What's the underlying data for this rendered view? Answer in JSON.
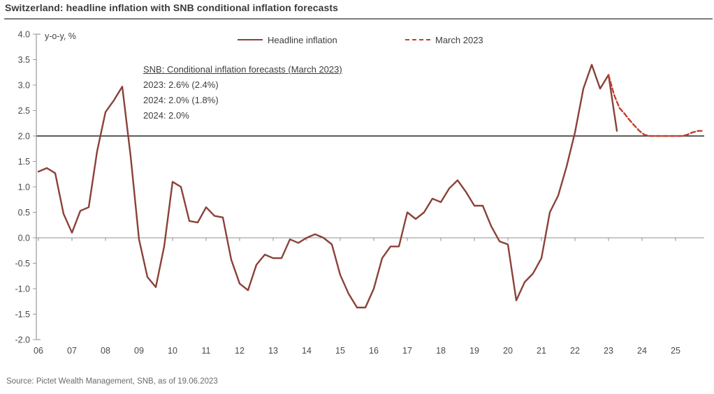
{
  "header": {
    "title": "Switzerland: headline inflation with SNB conditional inflation forecasts"
  },
  "chart": {
    "axis_unit_label": "y-o-y, %",
    "legend": [
      {
        "label": "Headline inflation",
        "style": "solid",
        "color": "#8a4138"
      },
      {
        "label": "March 2023",
        "style": "dashed",
        "color": "#c63c30"
      }
    ],
    "annotation": {
      "header": "SNB: Conditional inflation forecasts (March 2023)",
      "lines": [
        "2023: 2.6% (2.4%)",
        "2024: 2.0% (1.8%)",
        "2024: 2.0%"
      ]
    }
  },
  "chart_data": {
    "type": "line",
    "title": "Switzerland: headline inflation with SNB conditional inflation forecasts",
    "ylabel": "y-o-y, %",
    "ylim": [
      -2.0,
      4.0
    ],
    "ytick_labels": [
      "4.0",
      "3.5",
      "3.0",
      "2.5",
      "2.0",
      "1.5",
      "1.0",
      "0.5",
      "0.0",
      "-0.5",
      "-1.0",
      "-1.5",
      "-2.0"
    ],
    "ytick_values": [
      4.0,
      3.5,
      3.0,
      2.5,
      2.0,
      1.5,
      1.0,
      0.5,
      0.0,
      -0.5,
      -1.0,
      -1.5,
      -2.0
    ],
    "xtick_labels": [
      "06",
      "07",
      "08",
      "09",
      "10",
      "11",
      "12",
      "13",
      "14",
      "15",
      "16",
      "17",
      "18",
      "19",
      "20",
      "21",
      "22",
      "23",
      "24",
      "25"
    ],
    "xtick_years": [
      2006,
      2007,
      2008,
      2009,
      2010,
      2011,
      2012,
      2013,
      2014,
      2015,
      2016,
      2017,
      2018,
      2019,
      2020,
      2021,
      2022,
      2023,
      2024,
      2025
    ],
    "grid": false,
    "legend_position": "top",
    "reference_lines": [
      {
        "y": 2.0,
        "color": "#262626",
        "width": 1.5
      },
      {
        "y": 0.0,
        "color": "#8f8f8f",
        "width": 1.0
      }
    ],
    "series": [
      {
        "name": "Headline inflation",
        "style": "solid",
        "color": "#8a4138",
        "frequency": "quarterly",
        "x": [
          2006.0,
          2006.25,
          2006.5,
          2006.75,
          2007.0,
          2007.25,
          2007.5,
          2007.75,
          2008.0,
          2008.25,
          2008.5,
          2008.75,
          2009.0,
          2009.25,
          2009.5,
          2009.75,
          2010.0,
          2010.25,
          2010.5,
          2010.75,
          2011.0,
          2011.25,
          2011.5,
          2011.75,
          2012.0,
          2012.25,
          2012.5,
          2012.75,
          2013.0,
          2013.25,
          2013.5,
          2013.75,
          2014.0,
          2014.25,
          2014.5,
          2014.75,
          2015.0,
          2015.25,
          2015.5,
          2015.75,
          2016.0,
          2016.25,
          2016.5,
          2016.75,
          2017.0,
          2017.25,
          2017.5,
          2017.75,
          2018.0,
          2018.25,
          2018.5,
          2018.75,
          2019.0,
          2019.25,
          2019.5,
          2019.75,
          2020.0,
          2020.25,
          2020.5,
          2020.75,
          2021.0,
          2021.25,
          2021.5,
          2021.75,
          2022.0,
          2022.25,
          2022.5,
          2022.75,
          2023.0,
          2023.25
        ],
        "y": [
          1.3,
          1.37,
          1.27,
          0.47,
          0.1,
          0.53,
          0.6,
          1.7,
          2.47,
          2.7,
          2.97,
          1.6,
          -0.03,
          -0.77,
          -0.97,
          -0.17,
          1.1,
          1.0,
          0.33,
          0.3,
          0.6,
          0.43,
          0.4,
          -0.43,
          -0.9,
          -1.03,
          -0.53,
          -0.33,
          -0.4,
          -0.4,
          -0.03,
          -0.1,
          0.0,
          0.07,
          0.0,
          -0.13,
          -0.73,
          -1.1,
          -1.37,
          -1.37,
          -1.0,
          -0.4,
          -0.17,
          -0.17,
          0.5,
          0.37,
          0.5,
          0.77,
          0.7,
          0.97,
          1.13,
          0.9,
          0.63,
          0.63,
          0.23,
          -0.07,
          -0.13,
          -1.23,
          -0.87,
          -0.7,
          -0.4,
          0.5,
          0.83,
          1.4,
          2.07,
          2.93,
          3.4,
          2.93,
          3.2,
          2.1
        ]
      },
      {
        "name": "March 2023",
        "style": "dashed",
        "color": "#c63c30",
        "frequency": "quarterly",
        "x": [
          2023.0,
          2023.17,
          2023.33,
          2023.5,
          2023.58,
          2023.75,
          2023.92,
          2024.08,
          2024.25,
          2024.5,
          2024.75,
          2025.0,
          2025.17,
          2025.33,
          2025.5,
          2025.67,
          2025.78
        ],
        "y": [
          3.2,
          2.8,
          2.55,
          2.42,
          2.35,
          2.22,
          2.1,
          2.02,
          2.0,
          2.0,
          2.0,
          2.0,
          2.0,
          2.02,
          2.07,
          2.1,
          2.1
        ]
      }
    ]
  },
  "footer": {
    "source": "Source: Pictet Wealth Management, SNB, as of 19.06.2023"
  }
}
